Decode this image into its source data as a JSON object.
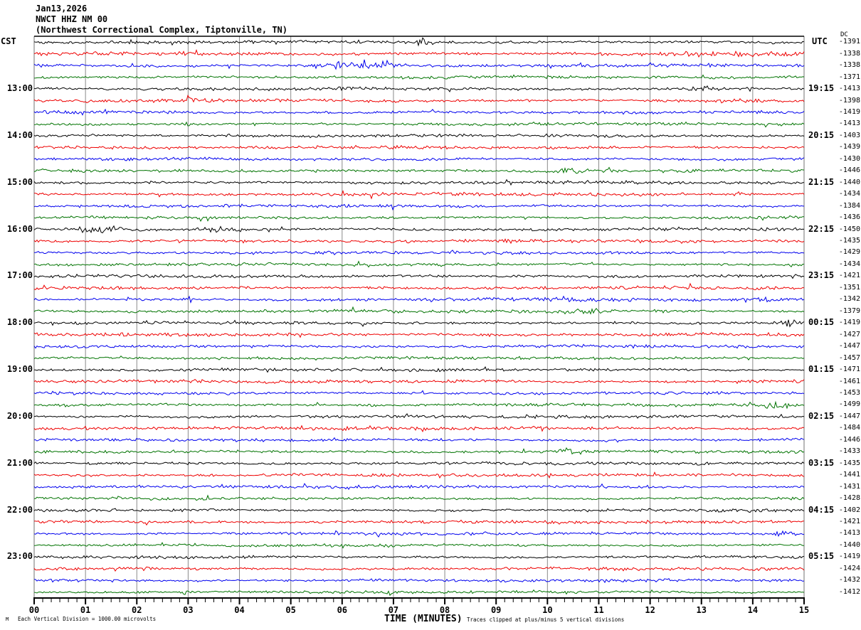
{
  "header": {
    "date": "Jan13,2026",
    "station": "NWCT HHZ NM 00",
    "description": "(Northwest Correctional Complex, Tiptonville, TN)",
    "left_tz": "CST",
    "right_tz": "UTC",
    "dc_label": "DC",
    "corner_mark": "M"
  },
  "footer": {
    "scale_note": "Each Vertical Division = 1000.00 microvolts",
    "xaxis_title": "TIME (MINUTES)",
    "clip_note": "Traces clipped at plus/minus 5 vertical divisions"
  },
  "colors": {
    "black": "#000000",
    "red": "#ee0000",
    "blue": "#0000ee",
    "green": "#007300",
    "grid": "#8a8a8a",
    "border": "#707070",
    "axis": "#000000"
  },
  "chart_data": {
    "type": "line",
    "title": "NWCT HHZ NM 00 helicorder seismogram, Jan13,2026",
    "xlabel": "TIME (MINUTES)",
    "x_range": [
      0,
      15
    ],
    "x_ticks": [
      "00",
      "01",
      "02",
      "03",
      "04",
      "05",
      "06",
      "07",
      "08",
      "09",
      "10",
      "11",
      "12",
      "13",
      "14",
      "15"
    ],
    "minor_ticks_per_minute": 5,
    "minutes_per_row": 15,
    "grid": "vertical-minute-lines",
    "clip_divisions": 5,
    "microvolts_per_division": 1000.0,
    "rows": [
      {
        "cst": "",
        "utc": "",
        "dc": -1391,
        "color": "black",
        "amp": 1.0,
        "bursts": [
          {
            "m": 7.55,
            "s": 0.06,
            "a": 3.5
          }
        ]
      },
      {
        "cst": "",
        "utc": "",
        "dc": -1338,
        "color": "red",
        "amp": 1.1,
        "bursts": [
          {
            "m": 3.0,
            "s": 0.15,
            "a": 1.2
          },
          {
            "m": 13.4,
            "s": 0.7,
            "a": 1.1
          }
        ]
      },
      {
        "cst": "",
        "utc": "",
        "dc": -1338,
        "color": "blue",
        "amp": 1.05,
        "bursts": [
          {
            "m": 6.2,
            "s": 0.5,
            "a": 2.2
          },
          {
            "m": 6.85,
            "s": 0.06,
            "a": 4.0
          }
        ]
      },
      {
        "cst": "",
        "utc": "",
        "dc": -1371,
        "color": "green",
        "amp": 1.0,
        "bursts": []
      },
      {
        "cst": "13:00",
        "utc": "19:15",
        "dc": -1413,
        "color": "black",
        "amp": 1.0,
        "bursts": [
          {
            "m": 13.2,
            "s": 0.3,
            "a": 1.4
          }
        ]
      },
      {
        "cst": "",
        "utc": "",
        "dc": -1398,
        "color": "red",
        "amp": 1.1,
        "bursts": [
          {
            "m": 3.05,
            "s": 0.05,
            "a": 4.5
          },
          {
            "m": 13.6,
            "s": 0.25,
            "a": 1.3
          }
        ]
      },
      {
        "cst": "",
        "utc": "",
        "dc": -1419,
        "color": "blue",
        "amp": 1.0,
        "bursts": []
      },
      {
        "cst": "",
        "utc": "",
        "dc": -1413,
        "color": "green",
        "amp": 0.95,
        "bursts": [
          {
            "m": 3.0,
            "s": 0.12,
            "a": 1.6
          }
        ]
      },
      {
        "cst": "14:00",
        "utc": "20:15",
        "dc": -1403,
        "color": "black",
        "amp": 1.0,
        "bursts": []
      },
      {
        "cst": "",
        "utc": "",
        "dc": -1439,
        "color": "red",
        "amp": 1.1,
        "bursts": []
      },
      {
        "cst": "",
        "utc": "",
        "dc": -1430,
        "color": "blue",
        "amp": 1.0,
        "bursts": []
      },
      {
        "cst": "",
        "utc": "",
        "dc": -1446,
        "color": "green",
        "amp": 1.0,
        "bursts": [
          {
            "m": 10.5,
            "s": 0.18,
            "a": 2.2
          }
        ]
      },
      {
        "cst": "15:00",
        "utc": "21:15",
        "dc": -1440,
        "color": "black",
        "amp": 1.0,
        "bursts": []
      },
      {
        "cst": "",
        "utc": "",
        "dc": -1434,
        "color": "red",
        "amp": 1.1,
        "bursts": [
          {
            "m": 13.8,
            "s": 0.12,
            "a": 1.8
          }
        ]
      },
      {
        "cst": "",
        "utc": "",
        "dc": -1384,
        "color": "blue",
        "amp": 1.0,
        "bursts": []
      },
      {
        "cst": "",
        "utc": "",
        "dc": -1436,
        "color": "green",
        "amp": 0.95,
        "bursts": []
      },
      {
        "cst": "16:00",
        "utc": "22:15",
        "dc": -1450,
        "color": "black",
        "amp": 1.05,
        "bursts": [
          {
            "m": 1.35,
            "s": 0.3,
            "a": 2.0
          },
          {
            "m": 3.7,
            "s": 0.3,
            "a": 1.6
          }
        ]
      },
      {
        "cst": "",
        "utc": "",
        "dc": -1435,
        "color": "red",
        "amp": 1.1,
        "bursts": []
      },
      {
        "cst": "",
        "utc": "",
        "dc": -1429,
        "color": "blue",
        "amp": 1.0,
        "bursts": []
      },
      {
        "cst": "",
        "utc": "",
        "dc": -1434,
        "color": "green",
        "amp": 0.95,
        "bursts": []
      },
      {
        "cst": "17:00",
        "utc": "23:15",
        "dc": -1421,
        "color": "black",
        "amp": 1.0,
        "bursts": []
      },
      {
        "cst": "",
        "utc": "",
        "dc": -1351,
        "color": "red",
        "amp": 1.1,
        "bursts": []
      },
      {
        "cst": "",
        "utc": "",
        "dc": -1342,
        "color": "blue",
        "amp": 1.0,
        "bursts": [
          {
            "m": 3.05,
            "s": 0.06,
            "a": 3.5
          },
          {
            "m": 10.3,
            "s": 0.25,
            "a": 1.3
          },
          {
            "m": 14.3,
            "s": 0.2,
            "a": 1.3
          }
        ]
      },
      {
        "cst": "",
        "utc": "",
        "dc": -1379,
        "color": "green",
        "amp": 1.0,
        "bursts": [
          {
            "m": 10.65,
            "s": 0.3,
            "a": 1.6
          }
        ]
      },
      {
        "cst": "18:00",
        "utc": "00:15",
        "dc": -1419,
        "color": "black",
        "amp": 1.0,
        "bursts": [
          {
            "m": 14.75,
            "s": 0.15,
            "a": 2.0
          }
        ]
      },
      {
        "cst": "",
        "utc": "",
        "dc": -1427,
        "color": "red",
        "amp": 1.1,
        "bursts": []
      },
      {
        "cst": "",
        "utc": "",
        "dc": -1447,
        "color": "blue",
        "amp": 1.0,
        "bursts": []
      },
      {
        "cst": "",
        "utc": "",
        "dc": -1457,
        "color": "green",
        "amp": 0.95,
        "bursts": []
      },
      {
        "cst": "19:00",
        "utc": "01:15",
        "dc": -1471,
        "color": "black",
        "amp": 1.0,
        "bursts": []
      },
      {
        "cst": "",
        "utc": "",
        "dc": -1461,
        "color": "red",
        "amp": 1.1,
        "bursts": []
      },
      {
        "cst": "",
        "utc": "",
        "dc": -1453,
        "color": "blue",
        "amp": 1.0,
        "bursts": []
      },
      {
        "cst": "",
        "utc": "",
        "dc": -1499,
        "color": "green",
        "amp": 1.0,
        "bursts": [
          {
            "m": 14.4,
            "s": 0.2,
            "a": 2.2
          }
        ]
      },
      {
        "cst": "20:00",
        "utc": "02:15",
        "dc": -1447,
        "color": "black",
        "amp": 1.0,
        "bursts": []
      },
      {
        "cst": "",
        "utc": "",
        "dc": -1484,
        "color": "red",
        "amp": 1.1,
        "bursts": []
      },
      {
        "cst": "",
        "utc": "",
        "dc": -1446,
        "color": "blue",
        "amp": 1.0,
        "bursts": []
      },
      {
        "cst": "",
        "utc": "",
        "dc": -1433,
        "color": "green",
        "amp": 0.95,
        "bursts": [
          {
            "m": 10.35,
            "s": 0.15,
            "a": 2.2
          }
        ]
      },
      {
        "cst": "21:00",
        "utc": "03:15",
        "dc": -1435,
        "color": "black",
        "amp": 1.0,
        "bursts": []
      },
      {
        "cst": "",
        "utc": "",
        "dc": -1441,
        "color": "red",
        "amp": 1.05,
        "bursts": []
      },
      {
        "cst": "",
        "utc": "",
        "dc": -1431,
        "color": "blue",
        "amp": 0.95,
        "bursts": []
      },
      {
        "cst": "",
        "utc": "",
        "dc": -1428,
        "color": "green",
        "amp": 0.9,
        "bursts": []
      },
      {
        "cst": "22:00",
        "utc": "04:15",
        "dc": -1402,
        "color": "black",
        "amp": 0.95,
        "bursts": []
      },
      {
        "cst": "",
        "utc": "",
        "dc": -1421,
        "color": "red",
        "amp": 1.05,
        "bursts": []
      },
      {
        "cst": "",
        "utc": "",
        "dc": -1413,
        "color": "blue",
        "amp": 0.95,
        "bursts": [
          {
            "m": 14.6,
            "s": 0.2,
            "a": 1.4
          }
        ]
      },
      {
        "cst": "",
        "utc": "",
        "dc": -1440,
        "color": "green",
        "amp": 0.9,
        "bursts": []
      },
      {
        "cst": "23:00",
        "utc": "05:15",
        "dc": -1419,
        "color": "black",
        "amp": 0.95,
        "bursts": []
      },
      {
        "cst": "",
        "utc": "",
        "dc": -1424,
        "color": "red",
        "amp": 1.05,
        "bursts": []
      },
      {
        "cst": "",
        "utc": "",
        "dc": -1432,
        "color": "blue",
        "amp": 0.95,
        "bursts": []
      },
      {
        "cst": "",
        "utc": "",
        "dc": -1412,
        "color": "green",
        "amp": 0.9,
        "bursts": [
          {
            "m": 2.95,
            "s": 0.06,
            "a": 2.5
          }
        ]
      }
    ]
  }
}
